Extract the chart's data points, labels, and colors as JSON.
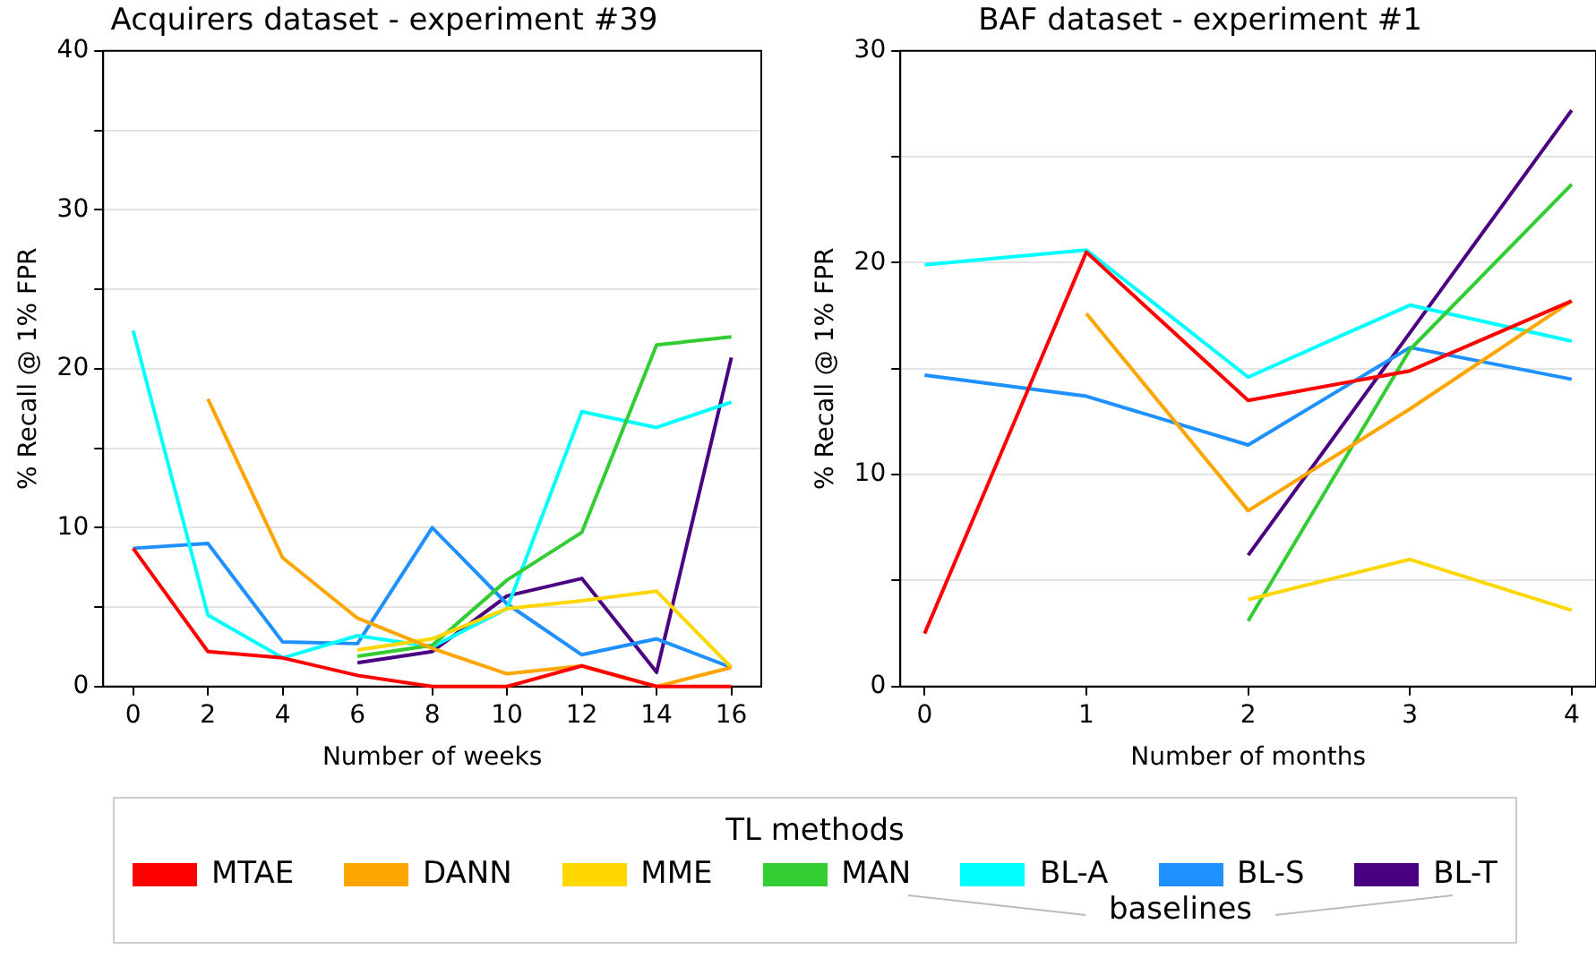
{
  "chart_data": [
    {
      "type": "line",
      "title": "Acquirers dataset - experiment #39",
      "xlabel": "Number of weeks",
      "ylabel": "% Recall @ 1% FPR",
      "legend_title": "TL methods",
      "legend": "bottom",
      "annotations": [
        "baselines"
      ],
      "x": [
        0,
        2,
        4,
        6,
        8,
        10,
        12,
        14,
        16
      ],
      "series": [
        {
          "name": "MTAE",
          "color": "#ff0000",
          "values": [
            8.7,
            2.2,
            1.8,
            0.7,
            0,
            0,
            1.3,
            0,
            0
          ]
        },
        {
          "name": "DANN",
          "color": "#ffa500",
          "values": [
            null,
            18.1,
            8.1,
            4.3,
            2.4,
            0.8,
            1.3,
            0,
            1.2
          ]
        },
        {
          "name": "MME",
          "color": "#ffd700",
          "values": [
            null,
            null,
            null,
            2.3,
            3.0,
            4.9,
            5.4,
            6.0,
            1.2
          ]
        },
        {
          "name": "MAN",
          "color": "#32cd32",
          "values": [
            null,
            null,
            null,
            1.9,
            2.6,
            6.7,
            9.7,
            21.5,
            22.0
          ]
        },
        {
          "name": "BL-A",
          "color": "#00ffff",
          "values": [
            22.4,
            4.5,
            1.8,
            3.2,
            2.5,
            4.9,
            17.3,
            16.3,
            17.9
          ]
        },
        {
          "name": "BL-S",
          "color": "#1e90ff",
          "values": [
            8.7,
            9.0,
            2.8,
            2.7,
            10.0,
            5.2,
            2.0,
            3.0,
            1.2
          ]
        },
        {
          "name": "BL-T",
          "color": "#4b0082",
          "values": [
            null,
            null,
            null,
            1.5,
            2.2,
            5.7,
            6.8,
            0.9,
            20.7
          ]
        }
      ],
      "xlim": [
        -0.8,
        16.8
      ],
      "xticks": [
        0,
        2,
        4,
        6,
        8,
        10,
        12,
        14,
        16
      ],
      "ylim": [
        0,
        40
      ],
      "yticks": [
        0,
        {
          "value": 5,
          "label": null
        },
        10,
        {
          "value": 15,
          "label": null
        },
        20,
        {
          "value": 25,
          "label": null
        },
        30,
        {
          "value": 35,
          "label": null
        },
        40
      ],
      "grid": "y",
      "marker": "none",
      "line_style": "solid"
    },
    {
      "type": "line",
      "title": "BAF dataset - experiment #1",
      "xlabel": "Number of months",
      "ylabel": "% Recall @ 1% FPR",
      "x": [
        0,
        1,
        2,
        3,
        4
      ],
      "series": [
        {
          "color": "#ff0000",
          "values": [
            2.5,
            20.5,
            13.5,
            14.9,
            18.2
          ]
        },
        {
          "color": "#ffa500",
          "values": [
            null,
            17.6,
            8.3,
            13.1,
            18.2
          ]
        },
        {
          "color": "#ffd700",
          "values": [
            null,
            null,
            4.1,
            6.0,
            3.6
          ]
        },
        {
          "color": "#32cd32",
          "values": [
            null,
            null,
            3.1,
            15.9,
            23.7
          ]
        },
        {
          "color": "#00ffff",
          "values": [
            19.9,
            20.6,
            14.6,
            18.0,
            16.3
          ]
        },
        {
          "color": "#1e90ff",
          "values": [
            14.7,
            13.7,
            11.4,
            16.0,
            14.5
          ]
        },
        {
          "color": "#4b0082",
          "values": [
            null,
            null,
            6.2,
            16.7,
            27.2
          ]
        }
      ],
      "xlim": [
        -0.15,
        4.15
      ],
      "xticks": [
        0,
        1,
        2,
        3,
        4
      ],
      "ylim": [
        0,
        30
      ],
      "yticks": [
        0,
        {
          "value": 5,
          "label": null
        },
        10,
        {
          "value": 15,
          "label": null
        },
        20,
        {
          "value": 25,
          "label": null
        },
        30
      ],
      "grid": "y",
      "marker": "none",
      "line_style": "solid"
    }
  ]
}
